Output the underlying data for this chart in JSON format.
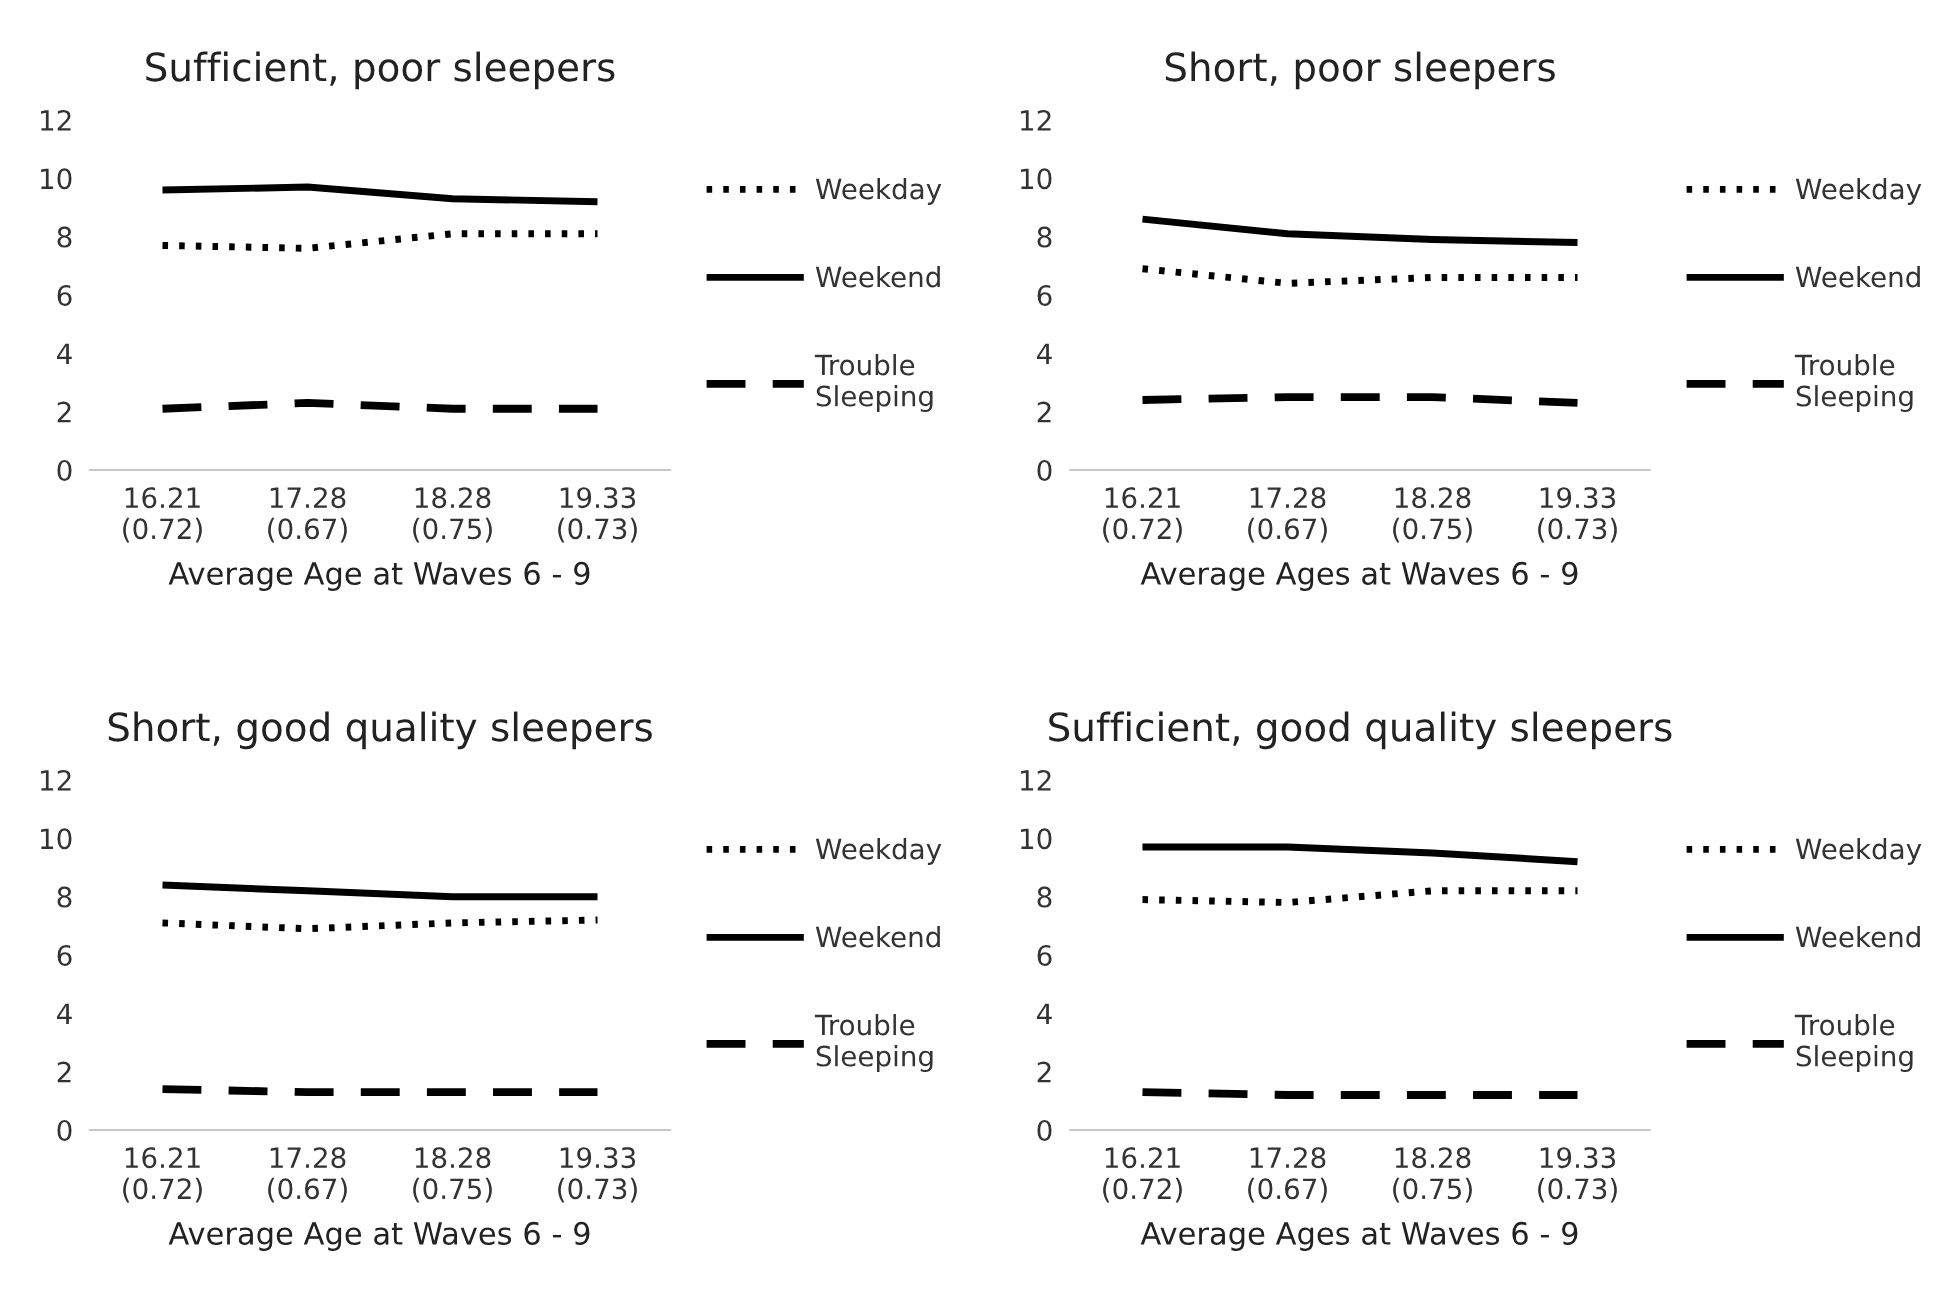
{
  "chart_data": [
    {
      "type": "line",
      "title": "Sufficient, poor sleepers",
      "xlabel": "Average Age at Waves 6 - 9",
      "categories": [
        "16.21\n(0.72)",
        "17.28\n(0.67)",
        "18.28\n(0.75)",
        "19.33\n(0.73)"
      ],
      "ylim": [
        0,
        12
      ],
      "yticks": [
        0,
        2,
        4,
        6,
        8,
        10,
        12
      ],
      "grid": false,
      "legend": "right",
      "series": [
        {
          "name": "Weekday",
          "color": "#000000",
          "line_style": "dotted",
          "values": [
            7.7,
            7.6,
            8.1,
            8.1
          ]
        },
        {
          "name": "Weekend",
          "color": "#000000",
          "line_style": "solid",
          "values": [
            9.6,
            9.7,
            9.3,
            9.2
          ]
        },
        {
          "name": "Trouble\nSleeping",
          "color": "#000000",
          "line_style": "dashed",
          "values": [
            2.1,
            2.3,
            2.1,
            2.1
          ]
        }
      ]
    },
    {
      "type": "line",
      "title": "Short, poor sleepers",
      "xlabel": "Average Ages at Waves 6 - 9",
      "categories": [
        "16.21\n(0.72)",
        "17.28\n(0.67)",
        "18.28\n(0.75)",
        "19.33\n(0.73)"
      ],
      "ylim": [
        0,
        12
      ],
      "yticks": [
        0,
        2,
        4,
        6,
        8,
        10,
        12
      ],
      "grid": false,
      "legend": "right",
      "series": [
        {
          "name": "Weekday",
          "color": "#000000",
          "line_style": "dotted",
          "values": [
            6.9,
            6.4,
            6.6,
            6.6
          ]
        },
        {
          "name": "Weekend",
          "color": "#000000",
          "line_style": "solid",
          "values": [
            8.6,
            8.1,
            7.9,
            7.8
          ]
        },
        {
          "name": "Trouble\nSleeping",
          "color": "#000000",
          "line_style": "dashed",
          "values": [
            2.4,
            2.5,
            2.5,
            2.3
          ]
        }
      ]
    },
    {
      "type": "line",
      "title": "Short, good quality sleepers",
      "xlabel": "Average Age at Waves 6 - 9",
      "categories": [
        "16.21\n(0.72)",
        "17.28\n(0.67)",
        "18.28\n(0.75)",
        "19.33\n(0.73)"
      ],
      "ylim": [
        0,
        12
      ],
      "yticks": [
        0,
        2,
        4,
        6,
        8,
        10,
        12
      ],
      "grid": false,
      "legend": "right",
      "series": [
        {
          "name": "Weekday",
          "color": "#000000",
          "line_style": "dotted",
          "values": [
            7.1,
            6.9,
            7.1,
            7.2
          ]
        },
        {
          "name": "Weekend",
          "color": "#000000",
          "line_style": "solid",
          "values": [
            8.4,
            8.2,
            8.0,
            8.0
          ]
        },
        {
          "name": "Trouble\nSleeping",
          "color": "#000000",
          "line_style": "dashed",
          "values": [
            1.4,
            1.3,
            1.3,
            1.3
          ]
        }
      ]
    },
    {
      "type": "line",
      "title": "Sufficient, good quality sleepers",
      "xlabel": "Average Ages at Waves 6 - 9",
      "categories": [
        "16.21\n(0.72)",
        "17.28\n(0.67)",
        "18.28\n(0.75)",
        "19.33\n(0.73)"
      ],
      "ylim": [
        0,
        12
      ],
      "yticks": [
        0,
        2,
        4,
        6,
        8,
        10,
        12
      ],
      "grid": false,
      "legend": "right",
      "series": [
        {
          "name": "Weekday",
          "color": "#000000",
          "line_style": "dotted",
          "values": [
            7.9,
            7.8,
            8.2,
            8.2
          ]
        },
        {
          "name": "Weekend",
          "color": "#000000",
          "line_style": "solid",
          "values": [
            9.7,
            9.7,
            9.5,
            9.2
          ]
        },
        {
          "name": "Trouble\nSleeping",
          "color": "#000000",
          "line_style": "dashed",
          "values": [
            1.3,
            1.2,
            1.2,
            1.2
          ]
        }
      ]
    }
  ]
}
